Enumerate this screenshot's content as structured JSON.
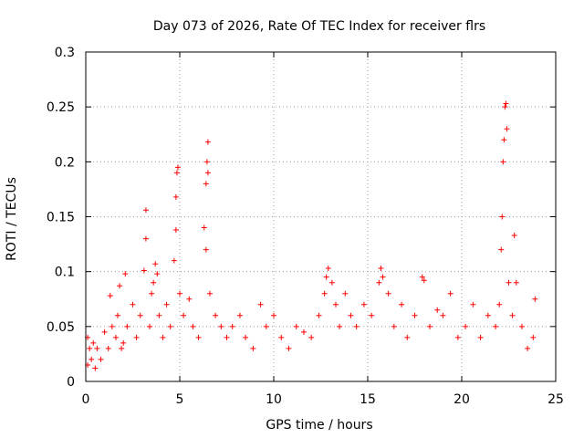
{
  "chart_data": {
    "type": "scatter",
    "title": "Day 073 of 2026, Rate Of TEC Index for receiver flrs",
    "xlabel": "GPS time / hours",
    "ylabel": "ROTI / TECUs",
    "xlim": [
      0,
      25
    ],
    "ylim": [
      0,
      0.3
    ],
    "xticks": [
      0,
      5,
      10,
      15,
      20,
      25
    ],
    "xtick_labels": [
      "0",
      "5",
      "10",
      "15",
      "20",
      "25"
    ],
    "yticks": [
      0,
      0.05,
      0.1,
      0.15,
      0.2,
      0.25,
      0.3
    ],
    "ytick_labels": [
      "0",
      "0.05",
      "0.1",
      "0.15",
      "0.2",
      "0.25",
      "0.3"
    ],
    "grid": true,
    "marker": "plus",
    "color": "#ff0000",
    "series": [
      {
        "name": "ROTI",
        "points": [
          [
            0.1,
            0.015
          ],
          [
            0.1,
            0.04
          ],
          [
            0.2,
            0.03
          ],
          [
            0.3,
            0.02
          ],
          [
            0.4,
            0.035
          ],
          [
            0.5,
            0.012
          ],
          [
            0.6,
            0.03
          ],
          [
            0.8,
            0.02
          ],
          [
            1.0,
            0.045
          ],
          [
            1.2,
            0.03
          ],
          [
            1.3,
            0.078
          ],
          [
            1.4,
            0.05
          ],
          [
            1.6,
            0.04
          ],
          [
            1.7,
            0.06
          ],
          [
            1.8,
            0.087
          ],
          [
            1.9,
            0.03
          ],
          [
            2.0,
            0.035
          ],
          [
            2.1,
            0.098
          ],
          [
            2.2,
            0.05
          ],
          [
            2.5,
            0.07
          ],
          [
            2.7,
            0.04
          ],
          [
            2.9,
            0.06
          ],
          [
            3.1,
            0.101
          ],
          [
            3.2,
            0.13
          ],
          [
            3.2,
            0.156
          ],
          [
            3.4,
            0.05
          ],
          [
            3.5,
            0.08
          ],
          [
            3.6,
            0.09
          ],
          [
            3.7,
            0.107
          ],
          [
            3.8,
            0.098
          ],
          [
            3.9,
            0.06
          ],
          [
            4.1,
            0.04
          ],
          [
            4.3,
            0.07
          ],
          [
            4.5,
            0.05
          ],
          [
            4.7,
            0.11
          ],
          [
            4.8,
            0.138
          ],
          [
            4.8,
            0.168
          ],
          [
            4.85,
            0.19
          ],
          [
            4.9,
            0.195
          ],
          [
            5.0,
            0.08
          ],
          [
            5.2,
            0.06
          ],
          [
            5.5,
            0.075
          ],
          [
            5.7,
            0.05
          ],
          [
            6.0,
            0.04
          ],
          [
            6.3,
            0.14
          ],
          [
            6.4,
            0.12
          ],
          [
            6.4,
            0.18
          ],
          [
            6.45,
            0.2
          ],
          [
            6.5,
            0.218
          ],
          [
            6.5,
            0.19
          ],
          [
            6.6,
            0.08
          ],
          [
            6.9,
            0.06
          ],
          [
            7.2,
            0.05
          ],
          [
            7.5,
            0.04
          ],
          [
            7.8,
            0.05
          ],
          [
            8.2,
            0.06
          ],
          [
            8.5,
            0.04
          ],
          [
            8.9,
            0.03
          ],
          [
            9.3,
            0.07
          ],
          [
            9.6,
            0.05
          ],
          [
            10.0,
            0.06
          ],
          [
            10.4,
            0.04
          ],
          [
            10.8,
            0.03
          ],
          [
            11.2,
            0.05
          ],
          [
            11.6,
            0.045
          ],
          [
            12.0,
            0.04
          ],
          [
            12.4,
            0.06
          ],
          [
            12.7,
            0.08
          ],
          [
            12.8,
            0.095
          ],
          [
            12.9,
            0.103
          ],
          [
            13.1,
            0.09
          ],
          [
            13.3,
            0.07
          ],
          [
            13.5,
            0.05
          ],
          [
            13.8,
            0.08
          ],
          [
            14.1,
            0.06
          ],
          [
            14.4,
            0.05
          ],
          [
            14.8,
            0.07
          ],
          [
            15.2,
            0.06
          ],
          [
            15.6,
            0.09
          ],
          [
            15.7,
            0.103
          ],
          [
            15.8,
            0.095
          ],
          [
            16.1,
            0.08
          ],
          [
            16.4,
            0.05
          ],
          [
            16.8,
            0.07
          ],
          [
            17.1,
            0.04
          ],
          [
            17.5,
            0.06
          ],
          [
            17.9,
            0.095
          ],
          [
            18.0,
            0.092
          ],
          [
            18.3,
            0.05
          ],
          [
            18.7,
            0.065
          ],
          [
            19.0,
            0.06
          ],
          [
            19.4,
            0.08
          ],
          [
            19.8,
            0.04
          ],
          [
            20.2,
            0.05
          ],
          [
            20.6,
            0.07
          ],
          [
            21.0,
            0.04
          ],
          [
            21.4,
            0.06
          ],
          [
            21.8,
            0.05
          ],
          [
            22.0,
            0.07
          ],
          [
            22.1,
            0.12
          ],
          [
            22.15,
            0.15
          ],
          [
            22.2,
            0.2
          ],
          [
            22.25,
            0.22
          ],
          [
            22.3,
            0.25
          ],
          [
            22.35,
            0.253
          ],
          [
            22.4,
            0.23
          ],
          [
            22.5,
            0.09
          ],
          [
            22.7,
            0.06
          ],
          [
            22.8,
            0.133
          ],
          [
            22.9,
            0.09
          ],
          [
            23.2,
            0.05
          ],
          [
            23.5,
            0.03
          ],
          [
            23.8,
            0.04
          ],
          [
            23.9,
            0.075
          ]
        ]
      }
    ]
  }
}
